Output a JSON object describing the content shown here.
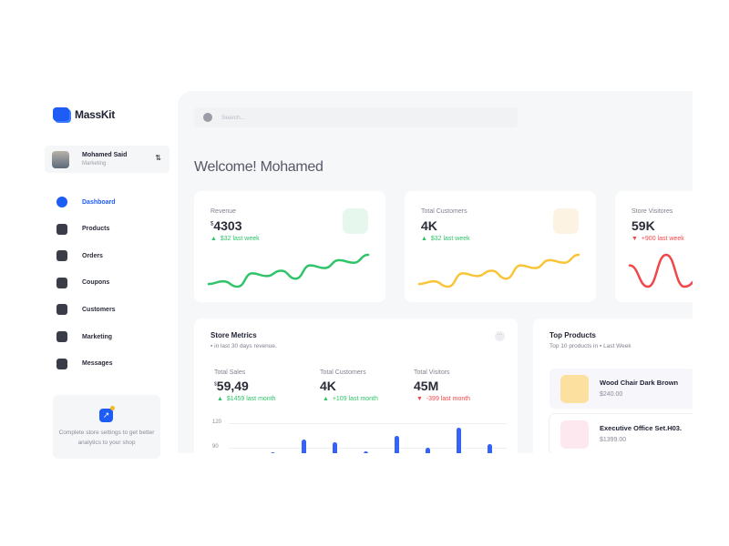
{
  "app": {
    "name": "MassKit"
  },
  "user": {
    "name": "Mohamed Said",
    "role": "Marketing"
  },
  "nav": [
    {
      "label": "Dashboard",
      "icon": "compass-icon",
      "active": true
    },
    {
      "label": "Products",
      "icon": "grid-icon"
    },
    {
      "label": "Orders",
      "icon": "bag-icon"
    },
    {
      "label": "Coupons",
      "icon": "ticket-icon"
    },
    {
      "label": "Customers",
      "icon": "users-icon"
    },
    {
      "label": "Marketing",
      "icon": "pie-icon"
    },
    {
      "label": "Messages",
      "icon": "mail-icon"
    }
  ],
  "promo": {
    "text": "Complete store settings to get better analytics to your shop"
  },
  "search": {
    "placeholder": "Search..."
  },
  "welcome": "Welcome! Mohamed",
  "stats": [
    {
      "label": "Revenue",
      "currency": "$",
      "value": "4303",
      "change": "$32 last week",
      "trend": "up",
      "color": "#2fc36a",
      "icon": "wallet-icon",
      "spark": [
        3,
        4,
        2,
        7,
        6,
        8,
        5,
        10,
        9,
        12,
        11,
        14
      ]
    },
    {
      "label": "Total Customers",
      "value": "4K",
      "change": "$32 last week",
      "trend": "up",
      "color": "#f9c437",
      "icon": "users-icon",
      "spark": [
        3,
        4,
        2,
        7,
        6,
        8,
        5,
        10,
        9,
        12,
        11,
        14
      ]
    },
    {
      "label": "Store Visitores",
      "value": "59K",
      "change": "+900 last week",
      "trend": "down",
      "color": "#f0484a",
      "icon": "eye-icon",
      "spark": [
        8,
        4,
        10,
        4,
        6
      ]
    }
  ],
  "metrics": {
    "title": "Store Metrics",
    "subtitle": "in last 30 days revenue.",
    "items": [
      {
        "label": "Total Sales",
        "currency": "$",
        "value": "59,49",
        "change": "$1459 last month",
        "trend": "up"
      },
      {
        "label": "Total Customers",
        "value": "4K",
        "change": "+109 last month",
        "trend": "up"
      },
      {
        "label": "Total Visitors",
        "value": "45M",
        "change": "-399 last month",
        "trend": "down"
      }
    ]
  },
  "chart_data": {
    "type": "bar",
    "yticks": [
      120,
      90
    ],
    "values": [
      84,
      100,
      97,
      86,
      104,
      90,
      114,
      94
    ],
    "color": "#3662f6",
    "grid": true
  },
  "top_products": {
    "title": "Top Products",
    "subtitle_prefix": "Top 10 products in",
    "period": "Last Week",
    "items": [
      {
        "name": "Wood Chair Dark Brown",
        "price": "$240.00"
      },
      {
        "name": "Executive Office Set.H03.",
        "price": "$1399.00"
      }
    ]
  }
}
